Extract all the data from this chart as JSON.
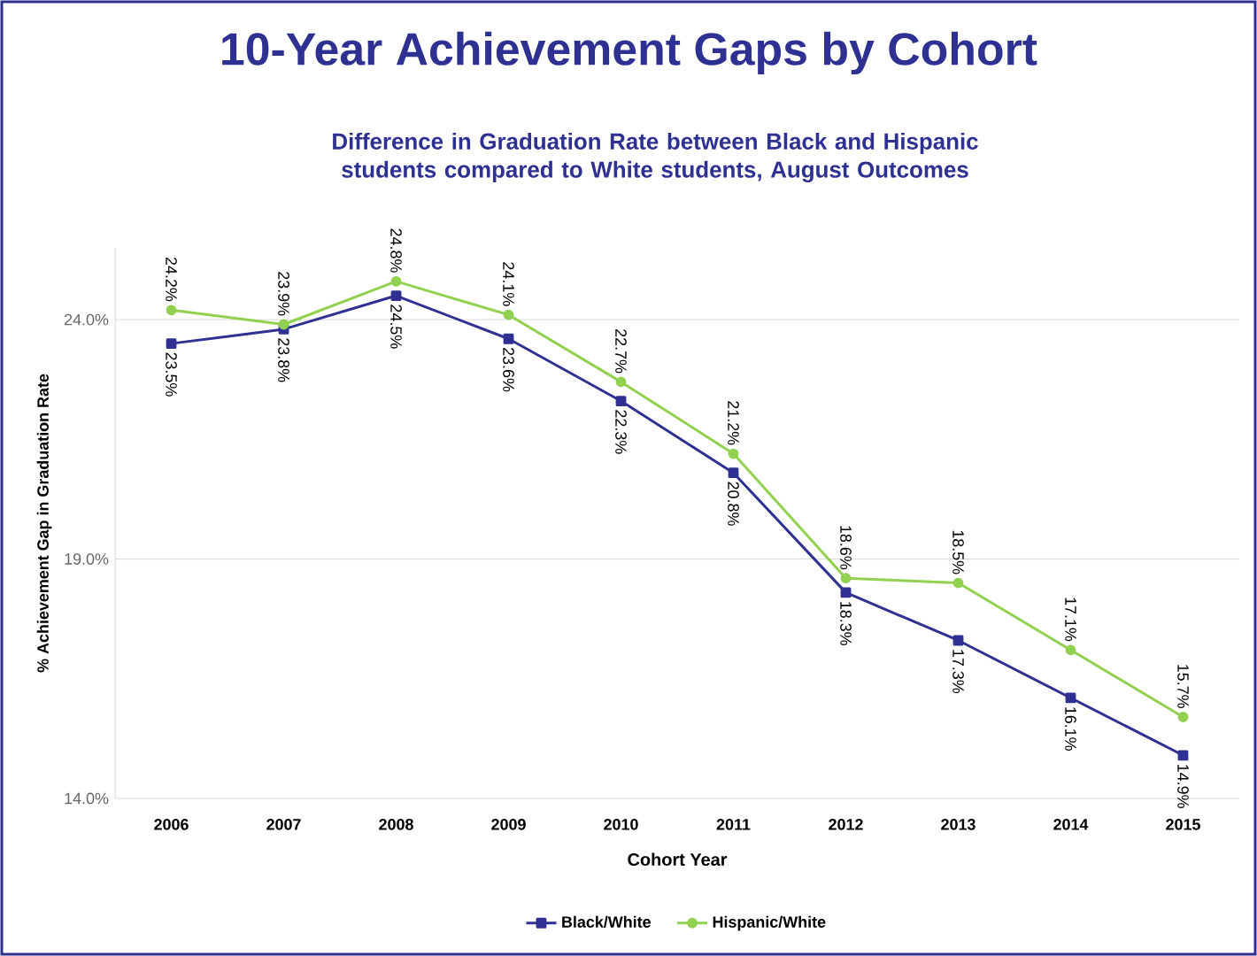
{
  "chart_data": {
    "type": "line",
    "title": "10-Year Achievement Gaps by Cohort",
    "subtitle": "Difference in Graduation Rate between Black and Hispanic students compared to White students, August Outcomes",
    "xlabel": "Cohort Year",
    "ylabel": "% Achievement Gap in Graduation Rate",
    "categories": [
      "2006",
      "2007",
      "2008",
      "2009",
      "2010",
      "2011",
      "2012",
      "2013",
      "2014",
      "2015"
    ],
    "series": [
      {
        "name": "Black/White",
        "color": "#2e3192",
        "marker": "square",
        "values": [
          23.5,
          23.8,
          24.5,
          23.6,
          22.3,
          20.8,
          18.3,
          17.3,
          16.1,
          14.9
        ],
        "value_labels": [
          "23.5%",
          "23.8%",
          "24.5%",
          "23.6%",
          "22.3%",
          "20.8%",
          "18.3%",
          "17.3%",
          "16.1%",
          "14.9%"
        ]
      },
      {
        "name": "Hispanic/White",
        "color": "#92d050",
        "marker": "circle",
        "values": [
          24.2,
          23.9,
          24.8,
          24.1,
          22.7,
          21.2,
          18.6,
          18.5,
          17.1,
          15.7
        ],
        "value_labels": [
          "24.2%",
          "23.9%",
          "24.8%",
          "24.1%",
          "22.7%",
          "21.2%",
          "18.6%",
          "18.5%",
          "17.1%",
          "15.7%"
        ]
      }
    ],
    "ylim": [
      14,
      25.5
    ],
    "yticks": [
      {
        "value": 14,
        "label": "14.0%"
      },
      {
        "value": 19,
        "label": "19.0%"
      },
      {
        "value": 24,
        "label": "24.0%"
      }
    ],
    "grid": "y",
    "legend": "bottom",
    "line_style": "solid"
  }
}
